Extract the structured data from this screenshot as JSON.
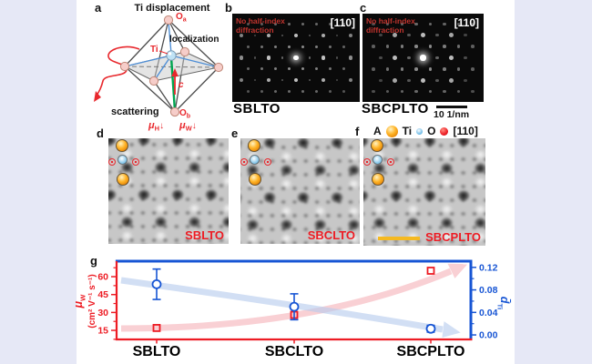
{
  "figure": {
    "panel_letters": {
      "a": "a",
      "b": "b",
      "c": "c",
      "d": "d",
      "e": "e",
      "f": "f",
      "g": "g"
    }
  },
  "panels": {
    "a": {
      "title": "Ti displacement",
      "oa": {
        "base": "O",
        "sub": "a"
      },
      "ob": {
        "base": "O",
        "sub": "b"
      },
      "ti_label": "Ti",
      "c_label": "c",
      "localization": "localization",
      "scattering": "scattering",
      "mu_h": {
        "base": "μ",
        "sub": "H",
        "arrow": "↓"
      },
      "mu_w": {
        "base": "μ",
        "sub": "W",
        "arrow": "↓"
      }
    },
    "b": {
      "annotation": "No half-index diffraction",
      "zone_axis": "[110]",
      "sample": "SBLTO"
    },
    "c": {
      "annotation": "No half-index diffraction",
      "zone_axis": "[110]",
      "sample": "SBCPLTO",
      "scale_bar_label": "10 1/nm"
    },
    "d": {
      "sample": "SBLTO"
    },
    "e": {
      "sample": "SBCLTO"
    },
    "f": {
      "sample": "SBCPLTO",
      "legend": {
        "a_label": "A",
        "ti_label": "Ti",
        "o_label": "O",
        "zone_axis": "[110]"
      }
    }
  },
  "chart_data": {
    "type": "scatter",
    "categories": [
      "SBLTO",
      "SBCLTO",
      "SBCPLTO"
    ],
    "series": [
      {
        "key": "muw",
        "name": "μW",
        "axis": "left",
        "marker": "open-square",
        "color": "#ed1c24",
        "values": [
          17,
          28,
          65
        ]
      },
      {
        "key": "dti",
        "name": "d̄Ti",
        "axis": "right",
        "marker": "open-circle",
        "color": "#1755d4",
        "values": [
          0.09,
          0.05,
          0.011
        ],
        "errors": [
          0.027,
          0.023,
          0.006
        ]
      }
    ],
    "left_axis": {
      "label_base": "μ",
      "label_sub": "W",
      "units": "(cm² V⁻¹ s⁻¹)",
      "color": "#ed1c24",
      "ticks": [
        "15",
        "30",
        "45",
        "60"
      ],
      "tick_values": [
        15,
        30,
        45,
        60
      ],
      "range": [
        7.4,
        73
      ]
    },
    "right_axis": {
      "label_base": "d̄",
      "label_sub": "Ti",
      "color": "#1755d4",
      "ticks": [
        "0.00",
        "0.04",
        "0.08",
        "0.12"
      ],
      "tick_values": [
        0,
        0.04,
        0.08,
        0.12
      ],
      "range": [
        -0.008,
        0.131
      ]
    },
    "trends": [
      {
        "direction": "up",
        "color": "#f6b3b9"
      },
      {
        "direction": "down",
        "color": "#b6cbee"
      }
    ],
    "grid": false,
    "legend_position": "none"
  },
  "colors": {
    "page_background": "#e6e8f6",
    "accent_red": "#ed1c24",
    "accent_blue": "#1755d4",
    "atom_a_orange": "#f7941d",
    "atom_ti_blue": "#7ec4ea",
    "atom_o_red": "#e8282d",
    "scale_bar_yellow": "#f5b921",
    "bond_green": "#00a550"
  }
}
